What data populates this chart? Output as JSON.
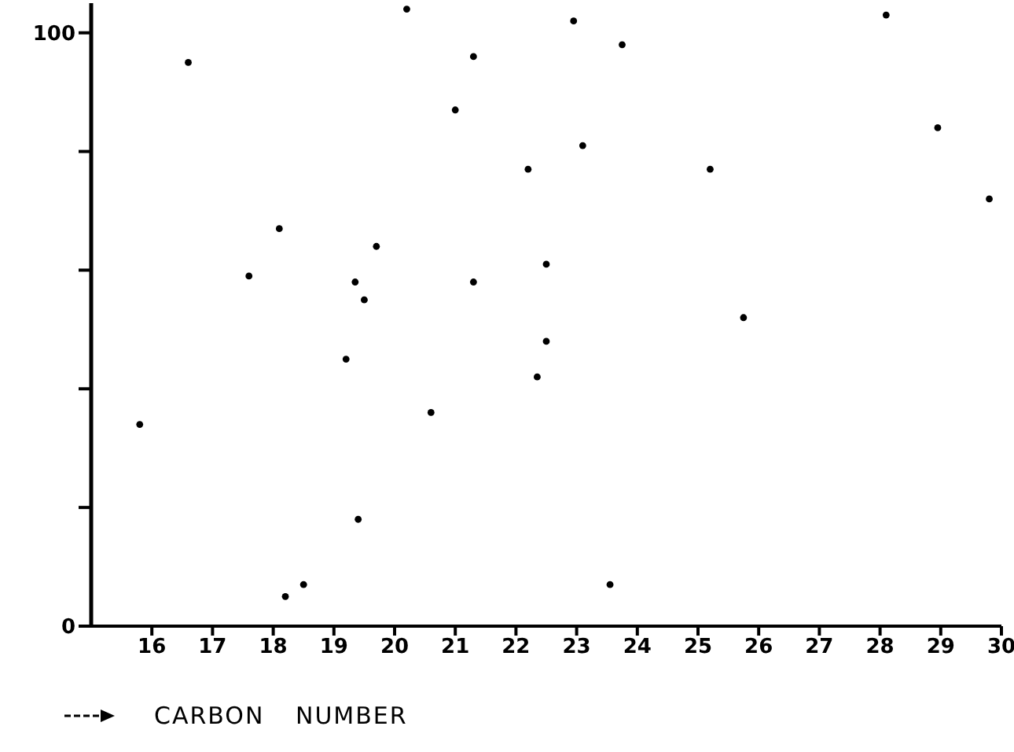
{
  "chart_data": {
    "type": "scatter",
    "xlabel": "CARBON NUMBER",
    "color": "#000000",
    "marker": "circle",
    "x": [
      15.8,
      16.6,
      17.6,
      18.1,
      18.2,
      18.5,
      19.2,
      19.35,
      19.5,
      19.7,
      19.4,
      20.6,
      20.2,
      21.0,
      21.3,
      21.3,
      22.95,
      23.75,
      23.1,
      22.2,
      25.2,
      28.1,
      28.95,
      29.8,
      22.5,
      25.75,
      22.5,
      22.35,
      23.55
    ],
    "values": [
      34,
      95,
      59,
      67,
      5,
      7,
      45,
      58,
      55,
      64,
      18,
      36,
      104,
      87,
      96,
      58,
      102,
      98,
      81,
      77,
      77,
      103,
      84,
      72,
      61,
      52,
      48,
      42,
      7
    ],
    "xlim": [
      15,
      30
    ],
    "xticks": [
      16,
      17,
      18,
      19,
      20,
      21,
      22,
      23,
      24,
      25,
      26,
      27,
      28,
      29,
      30
    ],
    "ylim": [
      0,
      105
    ],
    "yticks": [
      0,
      {
        "value": 20,
        "label": null
      },
      {
        "value": 40,
        "label": null
      },
      {
        "value": 60,
        "label": null
      },
      {
        "value": 80,
        "label": null
      },
      100
    ]
  }
}
